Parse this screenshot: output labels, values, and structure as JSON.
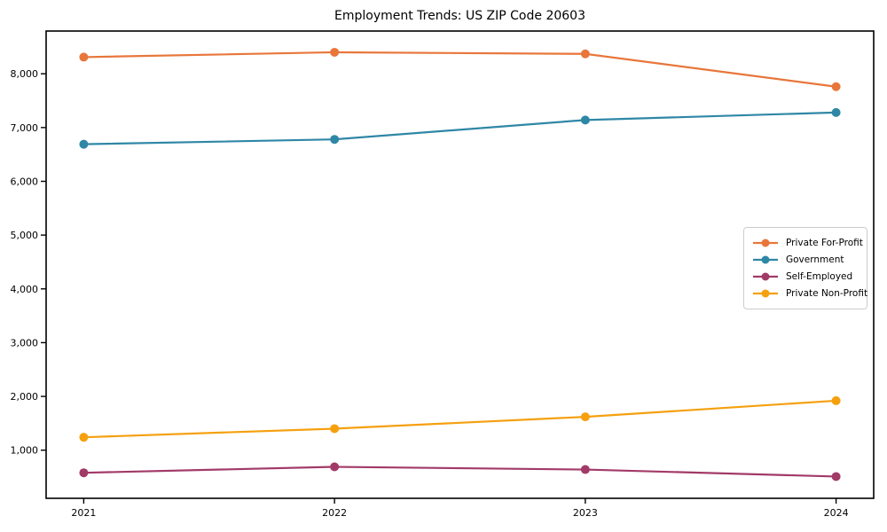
{
  "chart_data": {
    "type": "line",
    "title": "Employment Trends: US ZIP Code 20603",
    "xlabel": "",
    "ylabel": "",
    "x": [
      2021,
      2022,
      2023,
      2024
    ],
    "xtick_labels": [
      "2021",
      "2022",
      "2023",
      "2024"
    ],
    "yticks": [
      1000,
      2000,
      3000,
      4000,
      5000,
      6000,
      7000,
      8000
    ],
    "ytick_labels": [
      "1,000",
      "2,000",
      "3,000",
      "4,000",
      "5,000",
      "6,000",
      "7,000",
      "8,000"
    ],
    "xlim": [
      2020.85,
      2024.15
    ],
    "ylim": [
      105,
      8795
    ],
    "grid": false,
    "marker": "circle",
    "legend_position": "center right",
    "series": [
      {
        "name": "Private For-Profit",
        "color": "#e8763b",
        "values": [
          8310,
          8400,
          8370,
          7760
        ]
      },
      {
        "name": "Government",
        "color": "#2f87a6",
        "values": [
          6690,
          6780,
          7140,
          7280
        ]
      },
      {
        "name": "Self-Employed",
        "color": "#a23a68",
        "values": [
          580,
          690,
          640,
          510
        ]
      },
      {
        "name": "Private Non-Profit",
        "color": "#f5a00f",
        "values": [
          1240,
          1400,
          1620,
          1920
        ]
      }
    ]
  }
}
